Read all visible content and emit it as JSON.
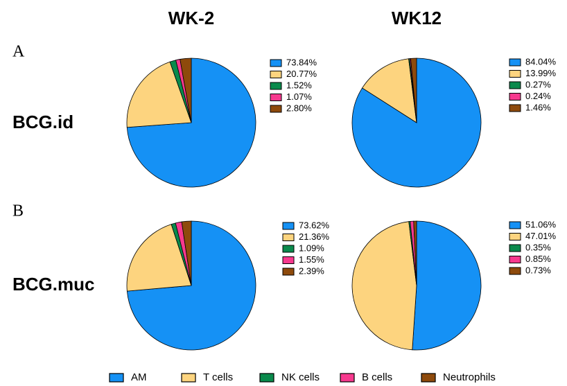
{
  "columns": [
    "WK-2",
    "WK12"
  ],
  "rows": [
    {
      "panel": "A",
      "label": "BCG.id"
    },
    {
      "panel": "B",
      "label": "BCG.muc"
    }
  ],
  "legend": {
    "labels": [
      "AM",
      "T cells",
      "NK cells",
      "B cells",
      "Neutrophils"
    ],
    "colors": [
      "#1591f5",
      "#fdd47f",
      "#0a8a4c",
      "#f7398e",
      "#8e4a0c"
    ]
  },
  "chart_data": [
    {
      "type": "pie",
      "values": [
        73.84,
        20.77,
        1.52,
        1.07,
        2.8
      ],
      "value_labels": [
        "73.84%",
        "20.77%",
        "1.52%",
        "1.07%",
        "2.80%"
      ]
    },
    {
      "type": "pie",
      "values": [
        84.04,
        13.99,
        0.27,
        0.24,
        1.46
      ],
      "value_labels": [
        "84.04%",
        "13.99%",
        "0.27%",
        "0.24%",
        "1.46%"
      ]
    },
    {
      "type": "pie",
      "values": [
        73.62,
        21.36,
        1.09,
        1.55,
        2.39
      ],
      "value_labels": [
        "73.62%",
        "21.36%",
        "1.09%",
        "1.55%",
        "2.39%"
      ]
    },
    {
      "type": "pie",
      "values": [
        51.06,
        47.01,
        0.35,
        0.85,
        0.73
      ],
      "value_labels": [
        "51.06%",
        "47.01%",
        "0.35%",
        "0.85%",
        "0.73%"
      ]
    }
  ]
}
